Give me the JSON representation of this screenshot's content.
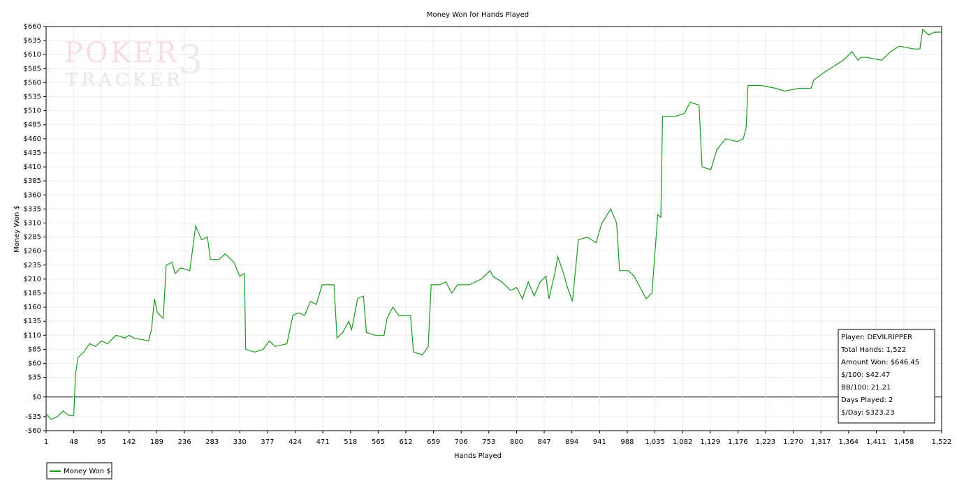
{
  "chart_data": {
    "type": "line",
    "title": "Money Won for Hands Played",
    "x_label": "Hands Played",
    "y_label": "Money Won $",
    "watermark": [
      "POKER",
      "TRACKER",
      "3"
    ],
    "annotations": [
      "Player: DEVILRIPPER",
      "Total Hands: 1,522",
      "Amount Won: $646.45",
      "$/100: $42.47",
      "BB/100: 21.21",
      "Days Played: 2",
      "$/Day: $323.23"
    ],
    "grid": true,
    "legend": "bottom-left",
    "x": [
      1,
      10,
      20,
      30,
      40,
      48,
      51,
      55,
      65,
      75,
      85,
      95,
      105,
      120,
      135,
      142,
      150,
      175,
      180,
      185,
      190,
      200,
      205,
      215,
      220,
      230,
      245,
      255,
      265,
      275,
      280,
      295,
      305,
      320,
      330,
      338,
      340,
      355,
      370,
      380,
      390,
      410,
      420,
      430,
      440,
      450,
      460,
      470,
      490,
      495,
      505,
      515,
      520,
      530,
      540,
      545,
      560,
      575,
      580,
      590,
      600,
      620,
      625,
      640,
      650,
      655,
      670,
      680,
      690,
      700,
      720,
      740,
      755,
      760,
      775,
      790,
      800,
      810,
      820,
      830,
      840,
      850,
      855,
      865,
      870,
      880,
      885,
      895,
      905,
      920,
      935,
      945,
      960,
      970,
      975,
      990,
      1000,
      1010,
      1020,
      1030,
      1040,
      1045,
      1048,
      1070,
      1085,
      1095,
      1110,
      1115,
      1130,
      1140,
      1155,
      1175,
      1185,
      1190,
      1193,
      1215,
      1240,
      1255,
      1280,
      1300,
      1305,
      1325,
      1340,
      1355,
      1370,
      1380,
      1385,
      1395,
      1420,
      1435,
      1450,
      1475,
      1485,
      1490,
      1500,
      1510,
      1522
    ],
    "series": [
      {
        "name": "Money Won $",
        "color": "#1a9a1a",
        "values": [
          -30,
          -40,
          -35,
          -25,
          -33,
          -33,
          40,
          70,
          80,
          95,
          90,
          100,
          95,
          110,
          105,
          110,
          105,
          100,
          120,
          175,
          150,
          140,
          235,
          240,
          220,
          230,
          225,
          305,
          280,
          285,
          245,
          245,
          255,
          240,
          215,
          220,
          85,
          80,
          85,
          100,
          90,
          95,
          145,
          150,
          145,
          170,
          165,
          200,
          200,
          105,
          115,
          135,
          120,
          175,
          180,
          115,
          110,
          110,
          140,
          160,
          145,
          145,
          80,
          75,
          90,
          200,
          200,
          205,
          185,
          200,
          200,
          210,
          225,
          215,
          205,
          190,
          195,
          175,
          205,
          180,
          205,
          215,
          175,
          220,
          250,
          220,
          200,
          170,
          280,
          285,
          275,
          310,
          335,
          310,
          225,
          225,
          215,
          195,
          175,
          185,
          325,
          320,
          500,
          500,
          505,
          525,
          520,
          410,
          405,
          440,
          460,
          455,
          460,
          480,
          555,
          555,
          550,
          545,
          550,
          550,
          565,
          580,
          590,
          600,
          615,
          600,
          605,
          605,
          600,
          615,
          625,
          620,
          620,
          655,
          645,
          650,
          650
        ]
      }
    ],
    "xlim": [
      1,
      1522
    ],
    "xticks": [
      1,
      48,
      95,
      142,
      189,
      236,
      283,
      330,
      377,
      424,
      471,
      518,
      565,
      612,
      659,
      706,
      753,
      800,
      847,
      894,
      941,
      988,
      {
        "value": 1035,
        "label": "1,035"
      },
      {
        "value": 1082,
        "label": "1,082"
      },
      {
        "value": 1129,
        "label": "1,129"
      },
      {
        "value": 1176,
        "label": "1,176"
      },
      {
        "value": 1223,
        "label": "1,223"
      },
      {
        "value": 1270,
        "label": "1,270"
      },
      {
        "value": 1317,
        "label": "1,317"
      },
      {
        "value": 1364,
        "label": "1,364"
      },
      {
        "value": 1411,
        "label": "1,411"
      },
      {
        "value": 1458,
        "label": "1,458"
      },
      {
        "value": 1522,
        "label": "1,522"
      }
    ],
    "ylim": [
      -60,
      660
    ],
    "yticks": [
      {
        "value": -60,
        "label": "-$60"
      },
      {
        "value": -35,
        "label": "-$35"
      },
      {
        "value": 0,
        "label": "$0"
      },
      {
        "value": 35,
        "label": "$35"
      },
      {
        "value": 60,
        "label": "$60"
      },
      {
        "value": 85,
        "label": "$85"
      },
      {
        "value": 110,
        "label": "$110"
      },
      {
        "value": 135,
        "label": "$135"
      },
      {
        "value": 160,
        "label": "$160"
      },
      {
        "value": 185,
        "label": "$185"
      },
      {
        "value": 210,
        "label": "$210"
      },
      {
        "value": 235,
        "label": "$235"
      },
      {
        "value": 260,
        "label": "$260"
      },
      {
        "value": 285,
        "label": "$285"
      },
      {
        "value": 310,
        "label": "$310"
      },
      {
        "value": 335,
        "label": "$335"
      },
      {
        "value": 360,
        "label": "$360"
      },
      {
        "value": 385,
        "label": "$385"
      },
      {
        "value": 410,
        "label": "$410"
      },
      {
        "value": 435,
        "label": "$435"
      },
      {
        "value": 460,
        "label": "$460"
      },
      {
        "value": 485,
        "label": "$485"
      },
      {
        "value": 510,
        "label": "$510"
      },
      {
        "value": 535,
        "label": "$535"
      },
      {
        "value": 560,
        "label": "$560"
      },
      {
        "value": 585,
        "label": "$585"
      },
      {
        "value": 610,
        "label": "$610"
      },
      {
        "value": 635,
        "label": "$635"
      },
      {
        "value": 660,
        "label": "$660"
      }
    ]
  }
}
